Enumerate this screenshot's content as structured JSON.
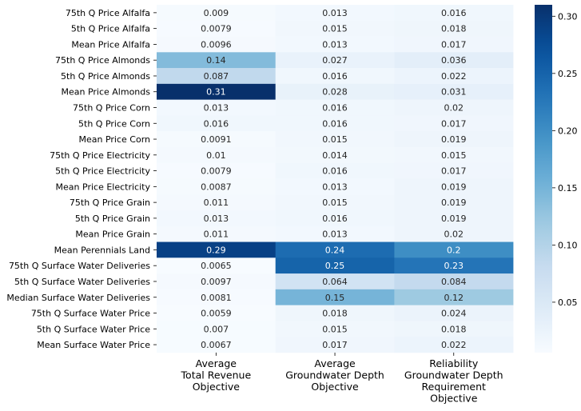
{
  "chart_data": {
    "type": "heatmap",
    "title": "",
    "xlabel": "",
    "ylabel": "",
    "rows": [
      "75th Q Price Alfalfa",
      "5th Q Price Alfalfa",
      "Mean Price Alfalfa",
      "75th Q Price Almonds",
      "5th Q Price Almonds",
      "Mean Price Almonds",
      "75th Q Price Corn",
      "5th Q Price Corn",
      "Mean Price Corn",
      "75th Q Price Electricity",
      "5th Q Price Electricity",
      "Mean Price Electricity",
      "75th Q Price Grain",
      "5th Q Price Grain",
      "Mean Price Grain",
      "Mean Perennials Land",
      "75th Q Surface Water Deliveries",
      "5th Q Surface Water Deliveries",
      "Median Surface Water Deliveries",
      "75th Q Surface Water Price",
      "5th Q Surface Water Price",
      "Mean Surface Water Price"
    ],
    "columns": [
      [
        "Average",
        "Total Revenue",
        "Objective"
      ],
      [
        "Average",
        "Groundwater Depth",
        "Objective"
      ],
      [
        "Reliability",
        "Groundwater Depth",
        "Requirement",
        "Objective"
      ]
    ],
    "values": [
      [
        0.009,
        0.013,
        0.016
      ],
      [
        0.0079,
        0.015,
        0.018
      ],
      [
        0.0096,
        0.013,
        0.017
      ],
      [
        0.14,
        0.027,
        0.036
      ],
      [
        0.087,
        0.016,
        0.022
      ],
      [
        0.31,
        0.028,
        0.031
      ],
      [
        0.013,
        0.016,
        0.02
      ],
      [
        0.016,
        0.016,
        0.017
      ],
      [
        0.0091,
        0.015,
        0.019
      ],
      [
        0.01,
        0.014,
        0.015
      ],
      [
        0.0079,
        0.016,
        0.017
      ],
      [
        0.0087,
        0.013,
        0.019
      ],
      [
        0.011,
        0.015,
        0.019
      ],
      [
        0.013,
        0.016,
        0.019
      ],
      [
        0.011,
        0.013,
        0.02
      ],
      [
        0.29,
        0.24,
        0.2
      ],
      [
        0.0065,
        0.25,
        0.23
      ],
      [
        0.0097,
        0.064,
        0.084
      ],
      [
        0.0081,
        0.15,
        0.12
      ],
      [
        0.0059,
        0.018,
        0.024
      ],
      [
        0.007,
        0.015,
        0.018
      ],
      [
        0.0067,
        0.017,
        0.022
      ]
    ],
    "colorbar": {
      "colormap": "Blues",
      "range": [
        0.0059,
        0.31
      ],
      "ticks": [
        "0.05",
        "0.10",
        "0.15",
        "0.20",
        "0.25",
        "0.30"
      ]
    }
  }
}
